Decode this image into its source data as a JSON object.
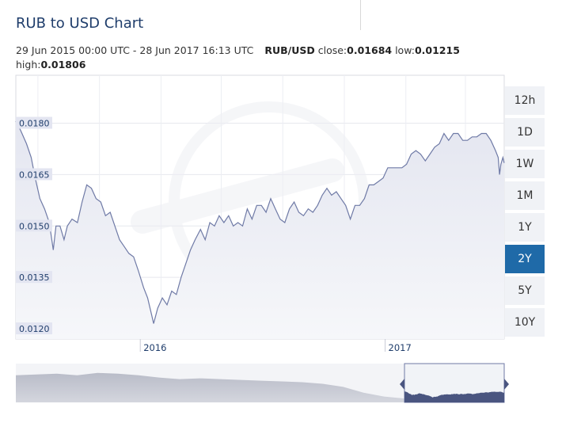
{
  "header": {
    "title": "RUB to USD Chart",
    "range_text": "29 Jun 2015 00:00 UTC - 28 Jun 2017 16:13 UTC",
    "pair": "RUB/USD",
    "close_label": "close:",
    "close_value": "0.01684",
    "low_label": "low:",
    "low_value": "0.01215",
    "high_label": "high:",
    "high_value": "0.01806"
  },
  "range_buttons": [
    {
      "label": "12h",
      "active": false
    },
    {
      "label": "1D",
      "active": false
    },
    {
      "label": "1W",
      "active": false
    },
    {
      "label": "1M",
      "active": false
    },
    {
      "label": "1Y",
      "active": false
    },
    {
      "label": "2Y",
      "active": true
    },
    {
      "label": "5Y",
      "active": false
    },
    {
      "label": "10Y",
      "active": false
    }
  ],
  "colors": {
    "line": "#6f7aa6",
    "area_top": "#e4e6f0",
    "area_bottom": "#f6f7fa",
    "tick_label_bg": "#e3e5f1",
    "active_button": "#1f6aa8",
    "navigator_fill": "#c4c7d1",
    "navigator_selected_fill": "#4a5580"
  },
  "chart_data": {
    "type": "area",
    "title": "RUB to USD Chart",
    "ylim": [
      0.0117,
      0.0194
    ],
    "y_ticks": [
      "0.0180",
      "0.0165",
      "0.0150",
      "0.0135",
      "0.0120"
    ],
    "x_ticks": [
      "2016",
      "2017"
    ],
    "grid": true,
    "series": [
      {
        "name": "RUB/USD",
        "points": [
          [
            "2015-06-29",
            0.01806
          ],
          [
            "2015-07-06",
            0.0178
          ],
          [
            "2015-07-15",
            0.0174
          ],
          [
            "2015-07-22",
            0.017
          ],
          [
            "2015-07-28",
            0.0164
          ],
          [
            "2015-08-04",
            0.0158
          ],
          [
            "2015-08-11",
            0.0155
          ],
          [
            "2015-08-18",
            0.0151
          ],
          [
            "2015-08-24",
            0.0143
          ],
          [
            "2015-08-28",
            0.015
          ],
          [
            "2015-09-03",
            0.015
          ],
          [
            "2015-09-09",
            0.0146
          ],
          [
            "2015-09-14",
            0.015
          ],
          [
            "2015-09-21",
            0.0152
          ],
          [
            "2015-09-29",
            0.0151
          ],
          [
            "2015-10-06",
            0.0157
          ],
          [
            "2015-10-13",
            0.0162
          ],
          [
            "2015-10-20",
            0.0161
          ],
          [
            "2015-10-27",
            0.0158
          ],
          [
            "2015-11-03",
            0.0157
          ],
          [
            "2015-11-10",
            0.0153
          ],
          [
            "2015-11-17",
            0.0154
          ],
          [
            "2015-11-24",
            0.015
          ],
          [
            "2015-12-01",
            0.0146
          ],
          [
            "2015-12-08",
            0.0144
          ],
          [
            "2015-12-15",
            0.0142
          ],
          [
            "2015-12-22",
            0.0141
          ],
          [
            "2015-12-29",
            0.0137
          ],
          [
            "2016-01-06",
            0.0132
          ],
          [
            "2016-01-12",
            0.0129
          ],
          [
            "2016-01-18",
            0.0124
          ],
          [
            "2016-01-21",
            0.01215
          ],
          [
            "2016-01-27",
            0.0126
          ],
          [
            "2016-02-03",
            0.0129
          ],
          [
            "2016-02-10",
            0.0127
          ],
          [
            "2016-02-17",
            0.0131
          ],
          [
            "2016-02-24",
            0.013
          ],
          [
            "2016-03-02",
            0.0135
          ],
          [
            "2016-03-09",
            0.0139
          ],
          [
            "2016-03-16",
            0.0143
          ],
          [
            "2016-03-23",
            0.0146
          ],
          [
            "2016-03-31",
            0.0149
          ],
          [
            "2016-04-07",
            0.0146
          ],
          [
            "2016-04-14",
            0.0151
          ],
          [
            "2016-04-21",
            0.015
          ],
          [
            "2016-04-28",
            0.0153
          ],
          [
            "2016-05-05",
            0.0151
          ],
          [
            "2016-05-12",
            0.0153
          ],
          [
            "2016-05-19",
            0.015
          ],
          [
            "2016-05-26",
            0.0151
          ],
          [
            "2016-06-02",
            0.015
          ],
          [
            "2016-06-09",
            0.0155
          ],
          [
            "2016-06-16",
            0.0152
          ],
          [
            "2016-06-23",
            0.0156
          ],
          [
            "2016-06-30",
            0.0156
          ],
          [
            "2016-07-07",
            0.0154
          ],
          [
            "2016-07-14",
            0.0158
          ],
          [
            "2016-07-21",
            0.0155
          ],
          [
            "2016-07-28",
            0.0152
          ],
          [
            "2016-08-04",
            0.0151
          ],
          [
            "2016-08-11",
            0.0155
          ],
          [
            "2016-08-18",
            0.0157
          ],
          [
            "2016-08-25",
            0.0154
          ],
          [
            "2016-09-01",
            0.0153
          ],
          [
            "2016-09-08",
            0.0155
          ],
          [
            "2016-09-15",
            0.0154
          ],
          [
            "2016-09-22",
            0.0156
          ],
          [
            "2016-09-29",
            0.0159
          ],
          [
            "2016-10-06",
            0.0161
          ],
          [
            "2016-10-13",
            0.0159
          ],
          [
            "2016-10-20",
            0.016
          ],
          [
            "2016-10-27",
            0.0158
          ],
          [
            "2016-11-03",
            0.0156
          ],
          [
            "2016-11-10",
            0.0152
          ],
          [
            "2016-11-17",
            0.0156
          ],
          [
            "2016-11-24",
            0.0156
          ],
          [
            "2016-12-01",
            0.0158
          ],
          [
            "2016-12-08",
            0.0162
          ],
          [
            "2016-12-15",
            0.0162
          ],
          [
            "2016-12-22",
            0.0163
          ],
          [
            "2016-12-29",
            0.0164
          ],
          [
            "2017-01-05",
            0.0167
          ],
          [
            "2017-01-12",
            0.0167
          ],
          [
            "2017-01-19",
            0.0167
          ],
          [
            "2017-01-26",
            0.0167
          ],
          [
            "2017-02-02",
            0.0168
          ],
          [
            "2017-02-09",
            0.0171
          ],
          [
            "2017-02-16",
            0.0172
          ],
          [
            "2017-02-23",
            0.0171
          ],
          [
            "2017-03-02",
            0.0169
          ],
          [
            "2017-03-09",
            0.0171
          ],
          [
            "2017-03-16",
            0.0173
          ],
          [
            "2017-03-23",
            0.0174
          ],
          [
            "2017-03-30",
            0.0177
          ],
          [
            "2017-04-06",
            0.0175
          ],
          [
            "2017-04-13",
            0.0177
          ],
          [
            "2017-04-20",
            0.0177
          ],
          [
            "2017-04-27",
            0.0175
          ],
          [
            "2017-05-04",
            0.0175
          ],
          [
            "2017-05-11",
            0.0176
          ],
          [
            "2017-05-18",
            0.0176
          ],
          [
            "2017-05-25",
            0.0177
          ],
          [
            "2017-06-01",
            0.0177
          ],
          [
            "2017-06-08",
            0.0175
          ],
          [
            "2017-06-15",
            0.0172
          ],
          [
            "2017-06-19",
            0.017
          ],
          [
            "2017-06-21",
            0.0165
          ],
          [
            "2017-06-23",
            0.0168
          ],
          [
            "2017-06-26",
            0.017
          ],
          [
            "2017-06-28",
            0.01684
          ]
        ]
      }
    ]
  }
}
